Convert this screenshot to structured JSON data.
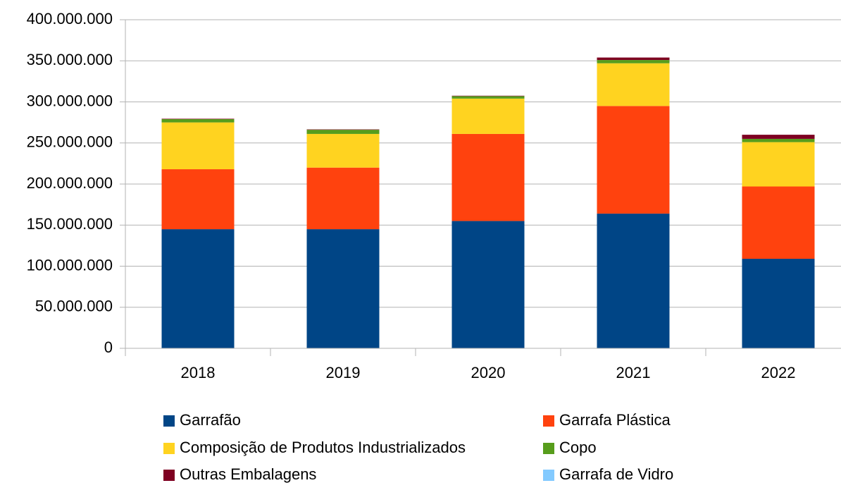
{
  "chart_data": {
    "type": "bar",
    "stacked": true,
    "categories": [
      "2018",
      "2019",
      "2020",
      "2021",
      "2022"
    ],
    "series": [
      {
        "name": "Garrafão",
        "color": "#004586",
        "values": [
          145000000,
          145000000,
          155000000,
          164000000,
          109000000
        ]
      },
      {
        "name": "Garrafa Plástica",
        "color": "#ff420e",
        "values": [
          73000000,
          75000000,
          106000000,
          131000000,
          88000000
        ]
      },
      {
        "name": "Composição de Produtos Industrializados",
        "color": "#ffd320",
        "values": [
          57000000,
          41000000,
          43000000,
          52000000,
          54000000
        ]
      },
      {
        "name": "Copo",
        "color": "#579d1c",
        "values": [
          4000000,
          5000000,
          3000000,
          4000000,
          4000000
        ]
      },
      {
        "name": "Outras Embalagens",
        "color": "#7e0021",
        "values": [
          500000,
          500000,
          500000,
          3000000,
          5000000
        ]
      },
      {
        "name": "Garrafa de Vidro",
        "color": "#83caff",
        "values": [
          0,
          0,
          0,
          0,
          0
        ]
      }
    ],
    "ylim": [
      0,
      400000000
    ],
    "yticks": [
      0,
      {
        "value": 50000000,
        "label": "50.000.000"
      },
      {
        "value": 100000000,
        "label": "100.000.000"
      },
      {
        "value": 150000000,
        "label": "150.000.000"
      },
      {
        "value": 200000000,
        "label": "200.000.000"
      },
      {
        "value": 250000000,
        "label": "250.000.000"
      },
      {
        "value": 300000000,
        "label": "300.000.000"
      },
      {
        "value": 350000000,
        "label": "350.000.000"
      },
      {
        "value": 400000000,
        "label": "400.000.000"
      }
    ],
    "grid": true,
    "legend": "bottom"
  }
}
